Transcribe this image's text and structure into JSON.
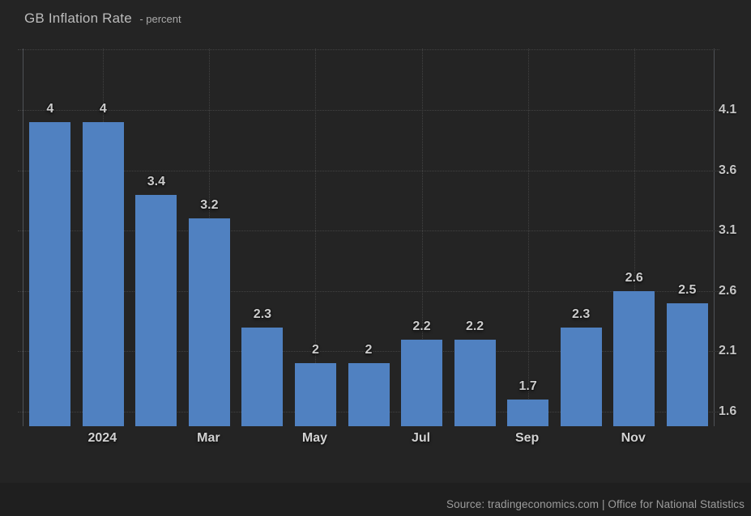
{
  "chart_data": {
    "type": "bar",
    "title": "GB Inflation Rate",
    "subtitle": "- percent",
    "values": [
      4,
      4,
      3.4,
      3.2,
      2.3,
      2,
      2,
      2.2,
      2.2,
      1.7,
      2.3,
      2.6,
      2.5
    ],
    "bar_value_labels": [
      "4",
      "4",
      "3.4",
      "3.2",
      "2.3",
      "2",
      "2",
      "2.2",
      "2.2",
      "1.7",
      "2.3",
      "2.6",
      "2.5"
    ],
    "x_ticks": [
      {
        "bar_index": 1,
        "label": "2024"
      },
      {
        "bar_index": 3,
        "label": "Mar"
      },
      {
        "bar_index": 5,
        "label": "May"
      },
      {
        "bar_index": 7,
        "label": "Jul"
      },
      {
        "bar_index": 9,
        "label": "Sep"
      },
      {
        "bar_index": 11,
        "label": "Nov"
      }
    ],
    "y_tick_labels": [
      "4.1",
      "3.6",
      "3.1",
      "2.6",
      "2.1",
      "1.6"
    ],
    "y_grid_values": [
      4.6,
      4.1,
      3.6,
      3.1,
      2.6,
      2.1,
      1.6
    ],
    "y_axis_min": 1.48,
    "y_axis_max": 4.61,
    "y_axis_side": "right",
    "grid": "dotted",
    "legend": false,
    "bar_color": "#5081c1",
    "background_color": "#242424",
    "source": "Source: tradingeconomics.com | Office for National Statistics"
  }
}
